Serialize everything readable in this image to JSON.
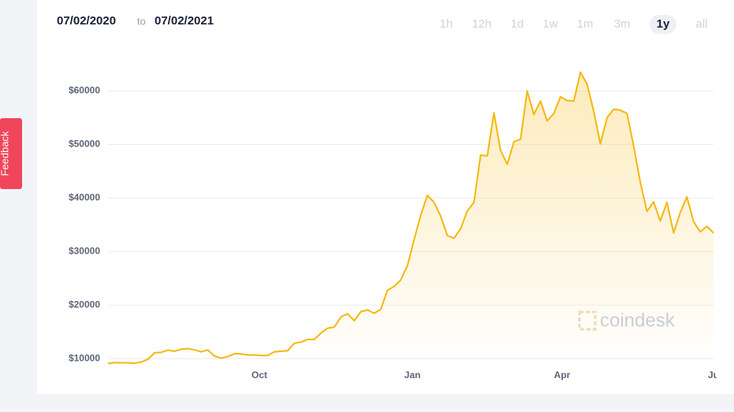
{
  "header": {
    "from": "07/02/2020",
    "to_word": "to",
    "to": "07/02/2021"
  },
  "range_buttons": [
    "1h",
    "12h",
    "1d",
    "1w",
    "1m",
    "3m",
    "1y",
    "all"
  ],
  "selected_range": "1y",
  "feedback": "Feedback",
  "watermark": "coindesk",
  "chart_data": {
    "type": "area",
    "color": "#f5b70c",
    "values": [
      9100,
      9300,
      9250,
      9250,
      9150,
      9400,
      9900,
      11100,
      11200,
      11600,
      11400,
      11800,
      11900,
      11650,
      11300,
      11650,
      10500,
      10100,
      10400,
      10950,
      10900,
      10700,
      10700,
      10600,
      10600,
      11300,
      11400,
      11500,
      12900,
      13100,
      13600,
      13600,
      14800,
      15700,
      15900,
      17800,
      18400,
      17100,
      18800,
      19100,
      18500,
      19200,
      22800,
      23500,
      24700,
      27400,
      32200,
      36800,
      40500,
      39200,
      36600,
      33000,
      32500,
      34300,
      37600,
      39200,
      48000,
      47900,
      55900,
      48900,
      46300,
      50500,
      51000,
      60000,
      55600,
      58100,
      54400,
      55800,
      58900,
      58200,
      58100,
      63500,
      61300,
      56200,
      50100,
      55000,
      56600,
      56400,
      55800,
      49700,
      42900,
      37500,
      39300,
      35700,
      39200,
      33500,
      37300,
      40200,
      35600,
      33700,
      34700,
      33500
    ],
    "xlim": [
      0,
      91
    ],
    "xticks": [
      {
        "value": 22.75,
        "label": "Oct"
      },
      {
        "value": 45.75,
        "label": "Jan"
      },
      {
        "value": 68.25,
        "label": "Apr"
      },
      {
        "value": 91,
        "label": "Ju"
      }
    ],
    "ylim": [
      8000,
      68000
    ],
    "yticks": [
      {
        "value": 10000,
        "label": "$10000"
      },
      {
        "value": 20000,
        "label": "$20000"
      },
      {
        "value": 30000,
        "label": "$30000"
      },
      {
        "value": 40000,
        "label": "$40000"
      },
      {
        "value": 50000,
        "label": "$50000"
      },
      {
        "value": 60000,
        "label": "$60000"
      }
    ],
    "grid": true
  }
}
